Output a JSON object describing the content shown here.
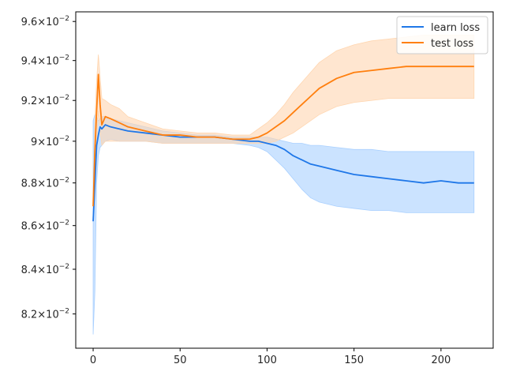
{
  "chart_data": {
    "type": "line",
    "title": "",
    "xlabel": "",
    "ylabel": "",
    "y_scale": "log",
    "xlim": [
      -10,
      230
    ],
    "ylim": [
      0.0805,
      0.0965
    ],
    "grid": false,
    "legend_position": "top-right",
    "x_ticks": [
      0,
      50,
      100,
      150,
      200
    ],
    "x_tick_labels": [
      "0",
      "50",
      "100",
      "150",
      "200"
    ],
    "y_ticks": [
      0.082,
      0.084,
      0.086,
      0.088,
      0.09,
      0.092,
      0.094,
      0.096
    ],
    "y_tick_labels": [
      {
        "mantissa": "8.2",
        "exp": "−2"
      },
      {
        "mantissa": "8.4",
        "exp": "−2"
      },
      {
        "mantissa": "8.6",
        "exp": "−2"
      },
      {
        "mantissa": "8.8",
        "exp": "−2"
      },
      {
        "mantissa": "9",
        "exp": "−2"
      },
      {
        "mantissa": "9.2",
        "exp": "−2"
      },
      {
        "mantissa": "9.4",
        "exp": "−2"
      },
      {
        "mantissa": "9.6",
        "exp": "−2"
      }
    ],
    "y_tick_base": "10",
    "y_tick_times": "×",
    "series": [
      {
        "name": "learn loss",
        "color": "#1f77e8",
        "band_color": "#a9d0ff",
        "x": [
          0,
          1,
          2,
          3,
          4,
          5,
          7,
          10,
          15,
          20,
          30,
          40,
          50,
          60,
          70,
          80,
          90,
          95,
          100,
          105,
          110,
          115,
          120,
          125,
          130,
          140,
          150,
          160,
          170,
          180,
          190,
          200,
          210,
          219
        ],
        "y": [
          0.0862,
          0.088,
          0.0898,
          0.0903,
          0.0907,
          0.0906,
          0.0908,
          0.0907,
          0.0906,
          0.0905,
          0.0904,
          0.0903,
          0.0902,
          0.0902,
          0.0902,
          0.0901,
          0.09,
          0.09,
          0.0899,
          0.0898,
          0.0896,
          0.0893,
          0.0891,
          0.0889,
          0.0888,
          0.0886,
          0.0884,
          0.0883,
          0.0882,
          0.0881,
          0.088,
          0.0881,
          0.088,
          0.088
        ],
        "lower": [
          0.0811,
          0.083,
          0.088,
          0.0893,
          0.0897,
          0.0898,
          0.09,
          0.0901,
          0.09,
          0.09,
          0.09,
          0.0899,
          0.0899,
          0.0899,
          0.0899,
          0.0899,
          0.0898,
          0.0897,
          0.0895,
          0.0891,
          0.0887,
          0.0882,
          0.0877,
          0.0873,
          0.0871,
          0.0869,
          0.0868,
          0.0867,
          0.0867,
          0.0866,
          0.0866,
          0.0866,
          0.0866,
          0.0866
        ],
        "upper": [
          0.091,
          0.0913,
          0.0912,
          0.091,
          0.0911,
          0.0912,
          0.0912,
          0.0911,
          0.091,
          0.0909,
          0.0907,
          0.0905,
          0.0904,
          0.0903,
          0.0903,
          0.0902,
          0.0902,
          0.0902,
          0.0902,
          0.0901,
          0.09,
          0.0899,
          0.0899,
          0.0898,
          0.0898,
          0.0897,
          0.0896,
          0.0896,
          0.0895,
          0.0895,
          0.0895,
          0.0895,
          0.0895,
          0.0895
        ]
      },
      {
        "name": "test loss",
        "color": "#ff7f0e",
        "band_color": "#ffd6b0",
        "x": [
          0,
          1,
          2,
          3,
          4,
          5,
          7,
          10,
          15,
          20,
          30,
          40,
          50,
          60,
          70,
          80,
          90,
          95,
          100,
          105,
          110,
          115,
          120,
          125,
          130,
          140,
          150,
          160,
          170,
          180,
          190,
          200,
          210,
          219
        ],
        "y": [
          0.0869,
          0.0895,
          0.0915,
          0.0933,
          0.0918,
          0.0908,
          0.0912,
          0.0911,
          0.0909,
          0.0907,
          0.0905,
          0.0903,
          0.0903,
          0.0902,
          0.0902,
          0.0901,
          0.0901,
          0.0902,
          0.0904,
          0.0907,
          0.091,
          0.0914,
          0.0918,
          0.0922,
          0.0926,
          0.0931,
          0.0934,
          0.0935,
          0.0936,
          0.0937,
          0.0937,
          0.0937,
          0.0937,
          0.0937
        ],
        "lower": [
          0.0868,
          0.088,
          0.0895,
          0.0915,
          0.0905,
          0.0898,
          0.09,
          0.09,
          0.09,
          0.09,
          0.09,
          0.0899,
          0.0899,
          0.0899,
          0.0899,
          0.0899,
          0.0899,
          0.0899,
          0.0899,
          0.09,
          0.0902,
          0.0904,
          0.0907,
          0.091,
          0.0913,
          0.0917,
          0.0919,
          0.092,
          0.0921,
          0.0921,
          0.0921,
          0.0921,
          0.0921,
          0.0921
        ],
        "upper": [
          0.087,
          0.091,
          0.093,
          0.0943,
          0.0932,
          0.0921,
          0.092,
          0.0918,
          0.0916,
          0.0912,
          0.0909,
          0.0906,
          0.0905,
          0.0904,
          0.0904,
          0.0903,
          0.0903,
          0.0906,
          0.0909,
          0.0913,
          0.0918,
          0.0924,
          0.0929,
          0.0934,
          0.0939,
          0.0945,
          0.0948,
          0.095,
          0.0951,
          0.0952,
          0.0953,
          0.0953,
          0.0953,
          0.0953
        ]
      }
    ]
  }
}
